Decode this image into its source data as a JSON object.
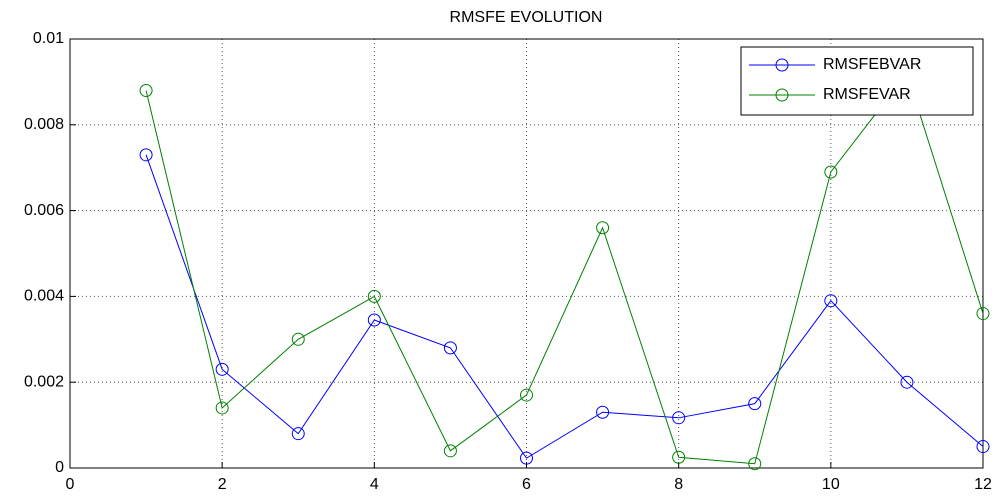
{
  "chart_data": {
    "type": "line",
    "title": "RMSFE EVOLUTION",
    "x": [
      1,
      2,
      3,
      4,
      5,
      6,
      7,
      8,
      9,
      10,
      11,
      12
    ],
    "series": [
      {
        "name": "RMSFEBVAR",
        "color": "#0000ff",
        "values": [
          0.0073,
          0.0023,
          0.0008,
          0.00345,
          0.0028,
          0.00023,
          0.0013,
          0.00117,
          0.0015,
          0.0039,
          0.002,
          0.0005
        ]
      },
      {
        "name": "RMSFEVAR",
        "color": "#008000",
        "values": [
          0.0088,
          0.0014,
          0.003,
          0.004,
          0.0004,
          0.0017,
          0.0056,
          0.00025,
          0.0001,
          0.0069,
          0.0092,
          0.0036
        ]
      }
    ],
    "xlim": [
      0,
      12
    ],
    "xticks": [
      0,
      2,
      4,
      6,
      8,
      10,
      12
    ],
    "ylim": [
      0,
      0.01
    ],
    "yticks": [
      0,
      0.002,
      0.004,
      0.006,
      0.008,
      0.01
    ],
    "grid": true,
    "legend": "top-right",
    "marker": "circle"
  }
}
